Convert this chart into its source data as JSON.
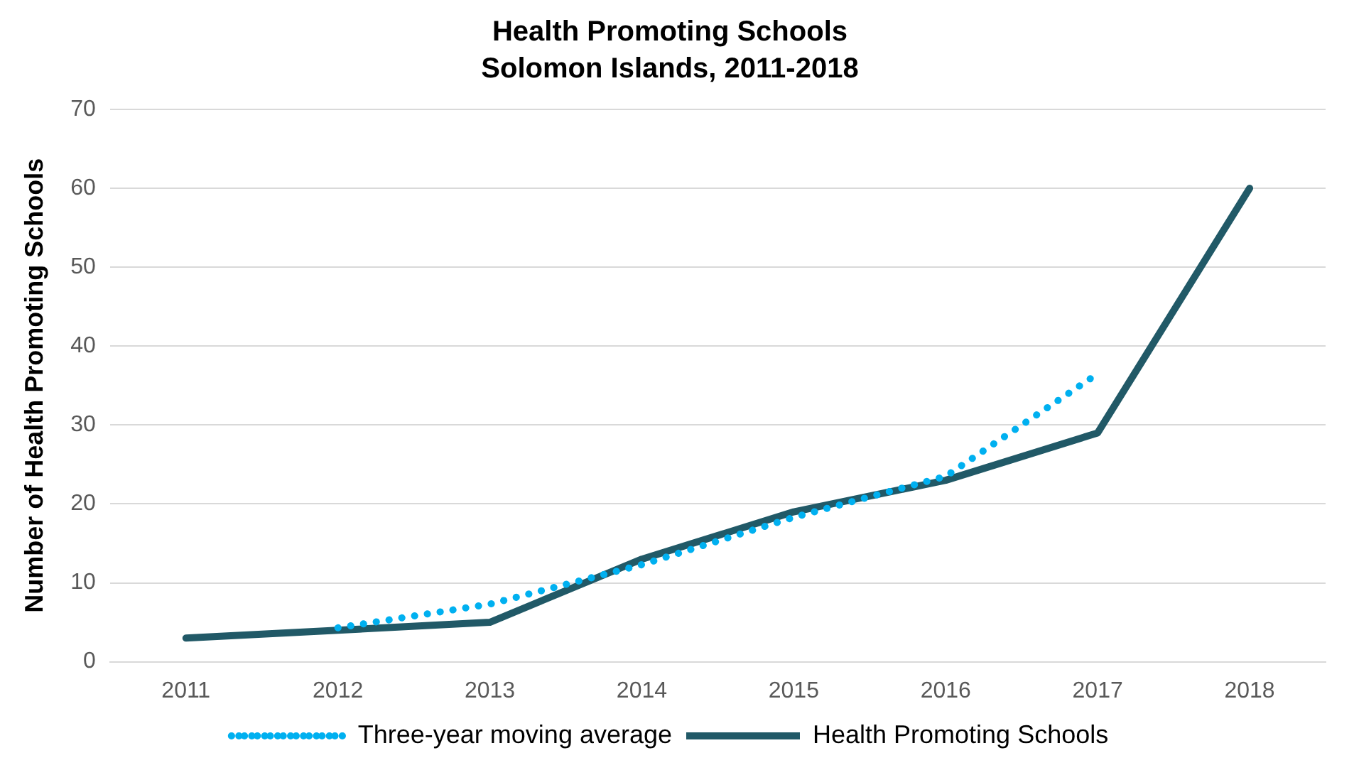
{
  "chart_data": {
    "type": "line",
    "title": "Health Promoting Schools",
    "subtitle": "Solomon Islands, 2011-2018",
    "ylabel": "Number of Health Promoting Schools",
    "categories": [
      "2011",
      "2012",
      "2013",
      "2014",
      "2015",
      "2016",
      "2017",
      "2018"
    ],
    "series": [
      {
        "name": "Three-year moving average",
        "color": "#00b0f0",
        "line_style": "dotted",
        "values": [
          null,
          4.3,
          7.3,
          12.3,
          18.3,
          23.5,
          36.5,
          null
        ]
      },
      {
        "name": "Health Promoting Schools",
        "color": "#215967",
        "line_style": "solid",
        "values": [
          3,
          4,
          5,
          13,
          19,
          23,
          29,
          60
        ]
      }
    ],
    "ylim": [
      0,
      70
    ],
    "yticks": [
      0,
      10,
      20,
      30,
      40,
      50,
      60,
      70
    ],
    "grid": "y",
    "legend": "bottom",
    "marker": "none"
  }
}
